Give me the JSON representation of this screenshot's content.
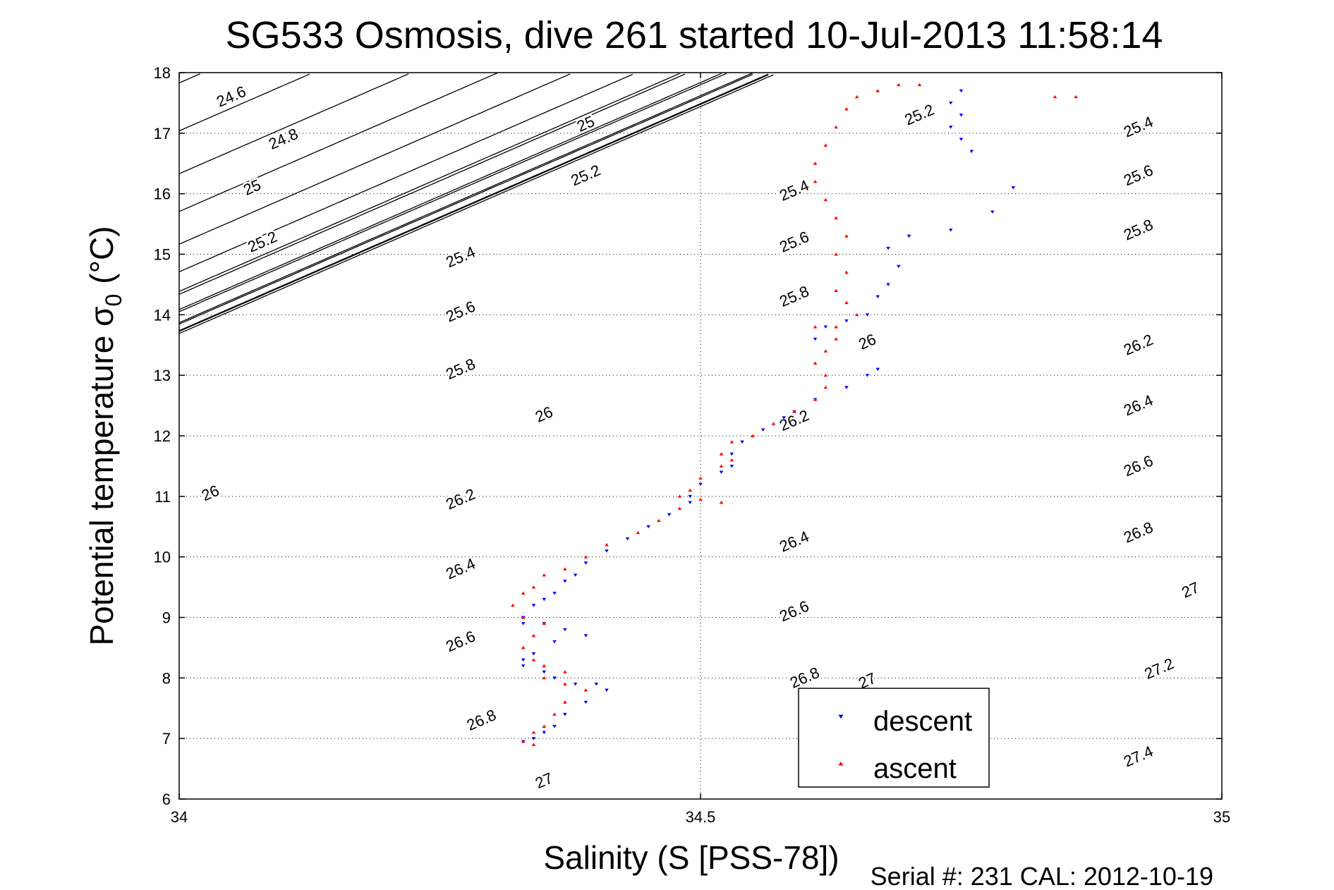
{
  "chart_data": {
    "type": "scatter",
    "title": "SG533 Osmosis, dive 261 started 10-Jul-2013 11:58:14",
    "xlabel": "Salinity (S [PSS-78])",
    "ylabel_main": "Potential temperature σ",
    "ylabel_sub": "0",
    "ylabel_unit": "(°C)",
    "footer": "Serial #: 231  CAL: 2012-10-19",
    "xlim": [
      34,
      35
    ],
    "ylim": [
      6,
      18
    ],
    "x_ticks": [
      "34",
      "34.5",
      "35"
    ],
    "y_ticks": [
      "6",
      "7",
      "8",
      "9",
      "10",
      "11",
      "12",
      "13",
      "14",
      "15",
      "16",
      "17",
      "18"
    ],
    "grid": "dotted",
    "legend_position": "bottom-right",
    "contour_levels": [
      24.6,
      24.8,
      25,
      25.2,
      25.4,
      25.6,
      25.8,
      26,
      26.2,
      26.4,
      26.6,
      26.8,
      27,
      27.2,
      27.4
    ],
    "contour_labels": [
      {
        "text": "24.6",
        "s": 34.05,
        "t": 17.6
      },
      {
        "text": "24.8",
        "s": 34.1,
        "t": 16.9
      },
      {
        "text": "25",
        "s": 34.07,
        "t": 16.1
      },
      {
        "text": "25.2",
        "s": 34.08,
        "t": 15.2
      },
      {
        "text": "25",
        "s": 34.39,
        "t": 17.15
      },
      {
        "text": "25.2",
        "s": 34.39,
        "t": 16.3
      },
      {
        "text": "25.4",
        "s": 34.27,
        "t": 14.95
      },
      {
        "text": "25.6",
        "s": 34.27,
        "t": 14.05
      },
      {
        "text": "25.8",
        "s": 34.27,
        "t": 13.1
      },
      {
        "text": "26",
        "s": 34.35,
        "t": 12.35
      },
      {
        "text": "26",
        "s": 34.03,
        "t": 11.05
      },
      {
        "text": "26.2",
        "s": 34.27,
        "t": 10.95
      },
      {
        "text": "26.4",
        "s": 34.27,
        "t": 9.8
      },
      {
        "text": "26.6",
        "s": 34.27,
        "t": 8.6
      },
      {
        "text": "26.8",
        "s": 34.29,
        "t": 7.3
      },
      {
        "text": "27",
        "s": 34.35,
        "t": 6.3
      },
      {
        "text": "25.4",
        "s": 34.59,
        "t": 16.05
      },
      {
        "text": "25.6",
        "s": 34.59,
        "t": 15.2
      },
      {
        "text": "25.8",
        "s": 34.59,
        "t": 14.3
      },
      {
        "text": "26",
        "s": 34.66,
        "t": 13.55
      },
      {
        "text": "26.2",
        "s": 34.59,
        "t": 12.25
      },
      {
        "text": "26.4",
        "s": 34.59,
        "t": 10.25
      },
      {
        "text": "26.6",
        "s": 34.59,
        "t": 9.1
      },
      {
        "text": "26.8",
        "s": 34.6,
        "t": 8.0
      },
      {
        "text": "27",
        "s": 34.66,
        "t": 7.95
      },
      {
        "text": "25.2",
        "s": 34.71,
        "t": 17.3
      },
      {
        "text": "25.4",
        "s": 34.92,
        "t": 17.1
      },
      {
        "text": "25.6",
        "s": 34.92,
        "t": 16.3
      },
      {
        "text": "25.8",
        "s": 34.92,
        "t": 15.4
      },
      {
        "text": "26.2",
        "s": 34.92,
        "t": 13.5
      },
      {
        "text": "26.4",
        "s": 34.92,
        "t": 12.5
      },
      {
        "text": "26.6",
        "s": 34.92,
        "t": 11.5
      },
      {
        "text": "26.8",
        "s": 34.92,
        "t": 10.4
      },
      {
        "text": "27",
        "s": 34.97,
        "t": 9.45
      },
      {
        "text": "27.2",
        "s": 34.94,
        "t": 8.15
      },
      {
        "text": "27.4",
        "s": 34.92,
        "t": 6.7
      }
    ],
    "series": [
      {
        "name": "descent",
        "color": "#0000ff",
        "marker": "triangle-down",
        "points": [
          [
            34.75,
            17.7
          ],
          [
            34.74,
            17.5
          ],
          [
            34.75,
            17.3
          ],
          [
            34.74,
            17.1
          ],
          [
            34.75,
            16.9
          ],
          [
            34.76,
            16.7
          ],
          [
            34.8,
            16.1
          ],
          [
            34.78,
            15.7
          ],
          [
            34.74,
            15.4
          ],
          [
            34.7,
            15.3
          ],
          [
            34.68,
            15.1
          ],
          [
            34.69,
            14.8
          ],
          [
            34.68,
            14.5
          ],
          [
            34.67,
            14.3
          ],
          [
            34.66,
            14.0
          ],
          [
            34.64,
            13.9
          ],
          [
            34.62,
            13.8
          ],
          [
            34.61,
            13.6
          ],
          [
            34.67,
            13.1
          ],
          [
            34.66,
            13.0
          ],
          [
            34.64,
            12.8
          ],
          [
            34.61,
            12.6
          ],
          [
            34.59,
            12.4
          ],
          [
            34.58,
            12.3
          ],
          [
            34.56,
            12.1
          ],
          [
            34.54,
            11.9
          ],
          [
            34.53,
            11.7
          ],
          [
            34.53,
            11.5
          ],
          [
            34.52,
            11.4
          ],
          [
            34.5,
            11.2
          ],
          [
            34.49,
            11.0
          ],
          [
            34.49,
            10.9
          ],
          [
            34.47,
            10.7
          ],
          [
            34.45,
            10.5
          ],
          [
            34.43,
            10.3
          ],
          [
            34.41,
            10.1
          ],
          [
            34.39,
            9.9
          ],
          [
            34.38,
            9.7
          ],
          [
            34.37,
            9.6
          ],
          [
            34.36,
            9.4
          ],
          [
            34.35,
            9.3
          ],
          [
            34.34,
            9.2
          ],
          [
            34.33,
            9.0
          ],
          [
            34.33,
            8.9
          ],
          [
            34.35,
            8.9
          ],
          [
            34.37,
            8.8
          ],
          [
            34.39,
            8.7
          ],
          [
            34.36,
            8.6
          ],
          [
            34.34,
            8.4
          ],
          [
            34.33,
            8.3
          ],
          [
            34.33,
            8.2
          ],
          [
            34.35,
            8.1
          ],
          [
            34.36,
            8.0
          ],
          [
            34.38,
            7.9
          ],
          [
            34.4,
            7.9
          ],
          [
            34.41,
            7.8
          ],
          [
            34.39,
            7.6
          ],
          [
            34.37,
            7.4
          ],
          [
            34.36,
            7.2
          ],
          [
            34.35,
            7.1
          ],
          [
            34.34,
            7.0
          ],
          [
            34.33,
            6.95
          ]
        ]
      },
      {
        "name": "ascent",
        "color": "#ff0000",
        "marker": "triangle-up",
        "points": [
          [
            34.86,
            17.6
          ],
          [
            34.84,
            17.6
          ],
          [
            34.71,
            17.8
          ],
          [
            34.69,
            17.8
          ],
          [
            34.67,
            17.7
          ],
          [
            34.65,
            17.6
          ],
          [
            34.64,
            17.4
          ],
          [
            34.63,
            17.1
          ],
          [
            34.62,
            16.8
          ],
          [
            34.61,
            16.5
          ],
          [
            34.61,
            16.2
          ],
          [
            34.62,
            15.9
          ],
          [
            34.63,
            15.6
          ],
          [
            34.64,
            15.3
          ],
          [
            34.63,
            15.0
          ],
          [
            34.64,
            14.7
          ],
          [
            34.63,
            14.4
          ],
          [
            34.64,
            14.2
          ],
          [
            34.65,
            14.0
          ],
          [
            34.63,
            13.8
          ],
          [
            34.61,
            13.8
          ],
          [
            34.63,
            13.6
          ],
          [
            34.62,
            13.4
          ],
          [
            34.61,
            13.2
          ],
          [
            34.62,
            13.0
          ],
          [
            34.62,
            12.8
          ],
          [
            34.61,
            12.6
          ],
          [
            34.59,
            12.4
          ],
          [
            34.57,
            12.2
          ],
          [
            34.55,
            12.0
          ],
          [
            34.53,
            11.9
          ],
          [
            34.52,
            11.7
          ],
          [
            34.53,
            11.6
          ],
          [
            34.52,
            11.5
          ],
          [
            34.5,
            11.3
          ],
          [
            34.49,
            11.1
          ],
          [
            34.48,
            11.0
          ],
          [
            34.5,
            10.95
          ],
          [
            34.52,
            10.9
          ],
          [
            34.48,
            10.8
          ],
          [
            34.46,
            10.6
          ],
          [
            34.44,
            10.4
          ],
          [
            34.41,
            10.2
          ],
          [
            34.39,
            10.0
          ],
          [
            34.37,
            9.8
          ],
          [
            34.35,
            9.7
          ],
          [
            34.34,
            9.5
          ],
          [
            34.33,
            9.4
          ],
          [
            34.32,
            9.2
          ],
          [
            34.33,
            9.0
          ],
          [
            34.35,
            8.9
          ],
          [
            34.34,
            8.7
          ],
          [
            34.33,
            8.5
          ],
          [
            34.34,
            8.3
          ],
          [
            34.35,
            8.2
          ],
          [
            34.37,
            8.1
          ],
          [
            34.35,
            8.0
          ],
          [
            34.37,
            7.9
          ],
          [
            34.39,
            7.8
          ],
          [
            34.37,
            7.6
          ],
          [
            34.36,
            7.4
          ],
          [
            34.35,
            7.2
          ],
          [
            34.34,
            7.1
          ],
          [
            34.33,
            6.95
          ],
          [
            34.34,
            6.9
          ]
        ]
      }
    ]
  }
}
